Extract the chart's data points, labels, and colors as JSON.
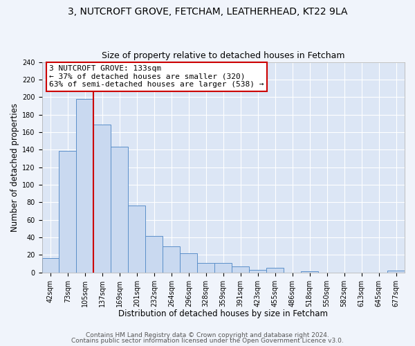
{
  "title": "3, NUTCROFT GROVE, FETCHAM, LEATHERHEAD, KT22 9LA",
  "subtitle": "Size of property relative to detached houses in Fetcham",
  "xlabel": "Distribution of detached houses by size in Fetcham",
  "ylabel": "Number of detached properties",
  "bar_labels": [
    "42sqm",
    "73sqm",
    "105sqm",
    "137sqm",
    "169sqm",
    "201sqm",
    "232sqm",
    "264sqm",
    "296sqm",
    "328sqm",
    "359sqm",
    "391sqm",
    "423sqm",
    "455sqm",
    "486sqm",
    "518sqm",
    "550sqm",
    "582sqm",
    "613sqm",
    "645sqm",
    "677sqm"
  ],
  "bar_values": [
    16,
    139,
    198,
    169,
    143,
    76,
    42,
    30,
    22,
    11,
    11,
    7,
    3,
    5,
    0,
    1,
    0,
    0,
    0,
    0,
    2
  ],
  "bar_color": "#c9d9f0",
  "bar_edge_color": "#5b8fc9",
  "vline_x": 3,
  "vline_color": "#cc0000",
  "annotation_title": "3 NUTCROFT GROVE: 133sqm",
  "annotation_line1": "← 37% of detached houses are smaller (320)",
  "annotation_line2": "63% of semi-detached houses are larger (538) →",
  "annotation_box_facecolor": "#ffffff",
  "annotation_box_edgecolor": "#cc0000",
  "ylim": [
    0,
    240
  ],
  "yticks": [
    0,
    20,
    40,
    60,
    80,
    100,
    120,
    140,
    160,
    180,
    200,
    220,
    240
  ],
  "footer1": "Contains HM Land Registry data © Crown copyright and database right 2024.",
  "footer2": "Contains public sector information licensed under the Open Government Licence v3.0.",
  "fig_bg_color": "#f0f4fb",
  "plot_bg_color": "#dce6f5",
  "grid_color": "#ffffff",
  "title_fontsize": 10,
  "subtitle_fontsize": 9,
  "axis_label_fontsize": 8.5,
  "tick_fontsize": 7,
  "footer_fontsize": 6.5,
  "annotation_fontsize": 8
}
